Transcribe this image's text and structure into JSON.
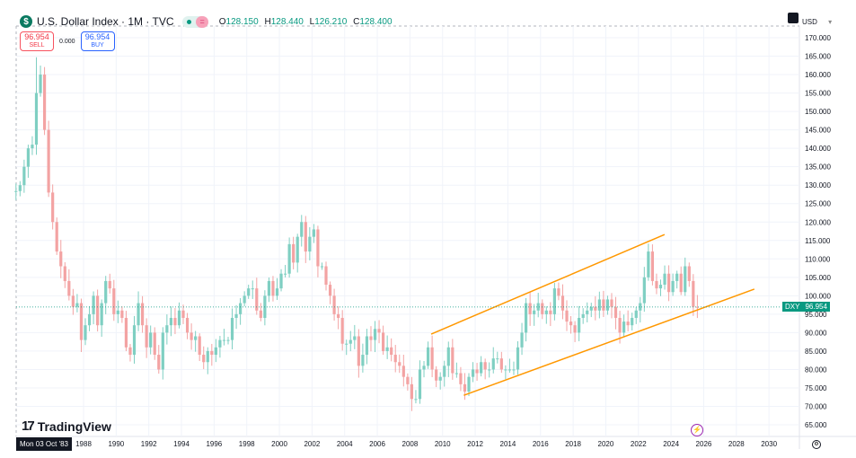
{
  "header": {
    "title": "U.S. Dollar Index · 1M · TVC",
    "symbol_icon": "dollar-circle-icon",
    "ohlc": {
      "o_label": "O",
      "o": "128.150",
      "h_label": "H",
      "h": "128.440",
      "l_label": "L",
      "l": "126.210",
      "c_label": "C",
      "c": "128.400"
    }
  },
  "trade": {
    "sell_price": "96.954",
    "sell_label": "SELL",
    "spread": "0.000",
    "buy_price": "96.954",
    "buy_label": "BUY"
  },
  "currency": "USD",
  "price_tag": {
    "symbol": "DXY",
    "value": "96.954"
  },
  "crosshair_date": "Mon 03 Oct '83",
  "brand": "TradingView",
  "colors": {
    "up": "#7fcfc2",
    "down": "#f3a3a3",
    "channel": "#ff9800",
    "last_price": "#089981"
  },
  "chart_data": {
    "type": "candlestick",
    "title": "U.S. Dollar Index · 1M · TVC",
    "ylim": [
      62,
      172
    ],
    "xlim": [
      1983.75,
      2031.5
    ],
    "y_ticks": [
      "65.000",
      "70.000",
      "75.000",
      "80.000",
      "85.000",
      "90.000",
      "95.000",
      "100.000",
      "105.000",
      "110.000",
      "115.000",
      "120.000",
      "125.000",
      "130.000",
      "135.000",
      "140.000",
      "145.000",
      "150.000",
      "155.000",
      "160.000",
      "165.000",
      "170.000"
    ],
    "x_ticks": [
      "1988",
      "1990",
      "1992",
      "1994",
      "1996",
      "1998",
      "2000",
      "2002",
      "2004",
      "2006",
      "2008",
      "2010",
      "2012",
      "2014",
      "2016",
      "2018",
      "2020",
      "2022",
      "2024",
      "2026",
      "2028",
      "2030"
    ],
    "grid": true,
    "last_price": 96.954,
    "start": 1983.75,
    "period": "quarter (approximate)",
    "closes": [
      128.4,
      130,
      135,
      140,
      141,
      155,
      160,
      145,
      128,
      120,
      112,
      108,
      104,
      100,
      97,
      98,
      88,
      92,
      95,
      100,
      92,
      98,
      104,
      102,
      95,
      96,
      94,
      86,
      84,
      92,
      98,
      92,
      86,
      90,
      84,
      80,
      90,
      92,
      94,
      92,
      96,
      94,
      90,
      88,
      89,
      84,
      82,
      85,
      84,
      86,
      88,
      88,
      88,
      94,
      95,
      98,
      100,
      102,
      102,
      96,
      94,
      100,
      104,
      100,
      102,
      106,
      106,
      114,
      109,
      116,
      120,
      112,
      116,
      118,
      108,
      108,
      103,
      100,
      95,
      94,
      87,
      87,
      88,
      89,
      81,
      84,
      89,
      88,
      91,
      90,
      85,
      86,
      84,
      82,
      81,
      78,
      76,
      72,
      72,
      80,
      81,
      86,
      80,
      77,
      78,
      81,
      86,
      79,
      79,
      76,
      74,
      78,
      80,
      79,
      82,
      80,
      80,
      83,
      83,
      80,
      80,
      80,
      80,
      86,
      90,
      98,
      95,
      96,
      98,
      95,
      96,
      95,
      102,
      100,
      96,
      93,
      92,
      90,
      94,
      95,
      96,
      97,
      96,
      99,
      96,
      99,
      97,
      94,
      90,
      93,
      92,
      94,
      96,
      98,
      105,
      112,
      104,
      102,
      103,
      106,
      101,
      104,
      106,
      101,
      108,
      104,
      97,
      96.954
    ],
    "extremes": {
      "high": 164.7,
      "low": 70.7
    },
    "trend_lines": [
      {
        "from": [
          2009.3,
          89.6
        ],
        "to": [
          2023.6,
          116.6
        ]
      },
      {
        "from": [
          2011.3,
          73.0
        ],
        "to": [
          2029.1,
          101.8
        ]
      }
    ]
  }
}
